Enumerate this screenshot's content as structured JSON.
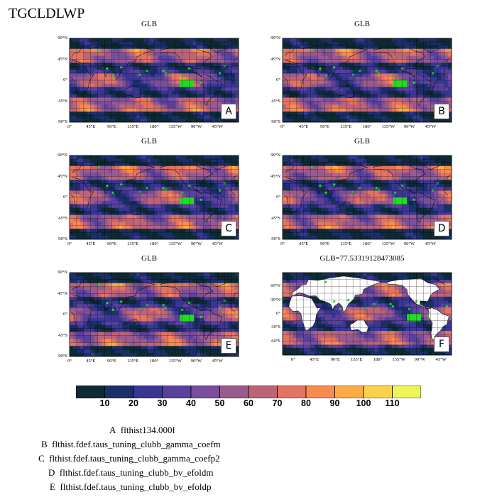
{
  "title": "TGCLDLWP",
  "panels": [
    {
      "title": "GLB",
      "letter": "A"
    },
    {
      "title": "GLB",
      "letter": "B"
    },
    {
      "title": "GLB",
      "letter": "C"
    },
    {
      "title": "GLB",
      "letter": "D"
    },
    {
      "title": "GLB",
      "letter": "E"
    },
    {
      "title": "GLB=77.53319128473085",
      "letter": "F"
    }
  ],
  "colorbar": {
    "levels": [
      "10",
      "20",
      "30",
      "40",
      "50",
      "60",
      "70",
      "80",
      "90",
      "100",
      "110"
    ],
    "colors": [
      "#0d2a36",
      "#1b2f69",
      "#3a3793",
      "#5a419d",
      "#7a4e9a",
      "#995a8f",
      "#be6477",
      "#e27462",
      "#f88b4f",
      "#fdab45",
      "#fbd34a",
      "#eef55a"
    ]
  },
  "axes": {
    "lat_labels": [
      "90°N",
      "45°N",
      "0°",
      "45°S",
      "90°S"
    ],
    "lon_labels": [
      "0°",
      "45°E",
      "90°E",
      "135°E",
      "180°",
      "135°W",
      "90°W",
      "45°W"
    ],
    "f_lat_labels": [
      "60°N",
      "30°N",
      "0°",
      "30°S",
      "60°S"
    ],
    "f_lon_labels": [
      "0°",
      "45°E",
      "90°E",
      "135°E",
      "180°",
      "135°W",
      "90°W",
      "45°W"
    ]
  },
  "legend": [
    {
      "key": "A",
      "text": "flthist134.000f"
    },
    {
      "key": "B",
      "text": "flthist.fdef.taus_tuning_clubb_gamma_coefm"
    },
    {
      "key": "C",
      "text": "flthist.fdef.taus_tuning_clubb_gamma_coefp2"
    },
    {
      "key": "D",
      "text": "flthist.fdef.taus_tuning_clubb_bv_efoldm"
    },
    {
      "key": "E",
      "text": "flthist.fdef.taus_tuning_clubb_bv_efoldp"
    }
  ],
  "chart_data": {
    "type": "heatmap",
    "variable": "TGCLDLWP",
    "region": "GLB",
    "f_global_mean": 77.53319128473085
  }
}
